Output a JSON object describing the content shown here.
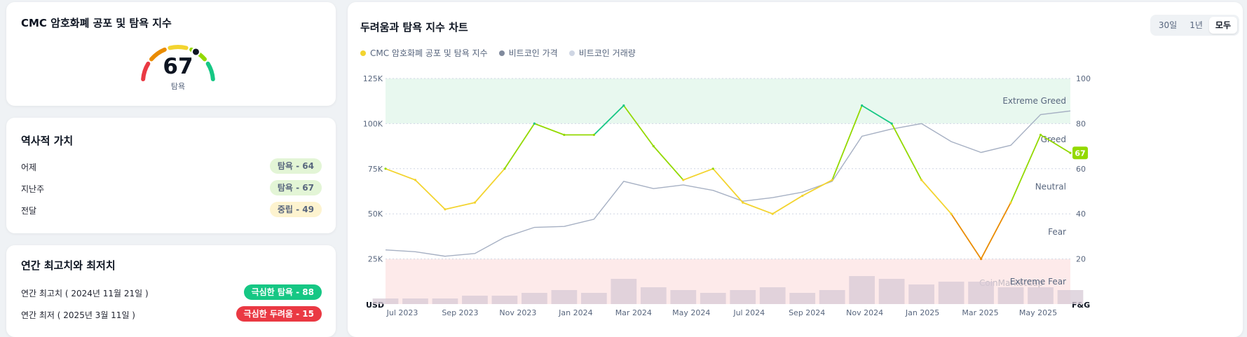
{
  "gauge": {
    "title": "CMC 암호화폐 공포 및 탐욕 지수",
    "value": "67",
    "label": "탐욕",
    "level": 67,
    "colors": [
      "#ea3943",
      "#ea8c00",
      "#f3d42f",
      "#93d900",
      "#16c784"
    ]
  },
  "historical": {
    "title": "역사적 가치",
    "rows": [
      {
        "label": "어제",
        "badge": "탐욕 - 64",
        "tone": "greed"
      },
      {
        "label": "지난주",
        "badge": "탐욕 - 67",
        "tone": "greed"
      },
      {
        "label": "전달",
        "badge": "중립 - 49",
        "tone": "neutral"
      }
    ]
  },
  "yearly": {
    "title": "연간 최고치와 최저치",
    "rows": [
      {
        "label": "연간 최고치 ( 2024년 11월 21일 )",
        "badge": "극심한 탐욕 - 88",
        "tone": "xgreed"
      },
      {
        "label": "연간 최저 ( 2025년 3월 11일 )",
        "badge": "극심한 두려움 - 15",
        "tone": "xfear"
      }
    ]
  },
  "chart_panel": {
    "title": "두려움과 탐욕 지수 차트",
    "ranges": [
      "30일",
      "1년",
      "모두"
    ],
    "active_range": "모두",
    "legend": [
      {
        "label": "CMC 암호화폐 공포 및 탐욕 지수",
        "color": "#f3d42f"
      },
      {
        "label": "비트코인 가격",
        "color": "#808a9d"
      },
      {
        "label": "비트코인 거래량",
        "color": "#cfd6e4"
      }
    ],
    "watermark": "CoinMarketCap"
  },
  "chart_data": {
    "type": "line",
    "x": [
      "2023-07",
      "2023-08",
      "2023-09",
      "2023-10",
      "2023-11",
      "2023-12",
      "2024-01",
      "2024-02",
      "2024-03",
      "2024-04",
      "2024-05",
      "2024-06",
      "2024-07",
      "2024-08",
      "2024-09",
      "2024-10",
      "2024-11",
      "2024-12",
      "2025-01",
      "2025-02",
      "2025-03",
      "2025-04",
      "2025-05",
      "2025-06"
    ],
    "x_tick_labels": [
      "Jul 2023",
      "Sep 2023",
      "Nov 2023",
      "Jan 2024",
      "Mar 2024",
      "May 2024",
      "Jul 2024",
      "Sep 2024",
      "Nov 2024",
      "Jan 2025",
      "Mar 2025",
      "May 2025"
    ],
    "left_axis": {
      "label": "USD",
      "ticks": [
        "125K",
        "100K",
        "75K",
        "50K",
        "25K"
      ],
      "values": [
        125000,
        100000,
        75000,
        50000,
        25000
      ],
      "range": [
        0,
        125000
      ]
    },
    "right_axis": {
      "label": "F&G",
      "ticks": [
        "100",
        "80",
        "60",
        "40",
        "20"
      ],
      "range": [
        0,
        100
      ]
    },
    "zones": [
      "Extreme Greed",
      "Greed",
      "Neutral",
      "Fear",
      "Extreme Fear"
    ],
    "current_value": "67",
    "series": [
      {
        "name": "CMC 암호화폐 공포 및 탐욕 지수",
        "axis": "right",
        "values": [
          60,
          55,
          42,
          45,
          60,
          80,
          75,
          75,
          88,
          70,
          55,
          60,
          45,
          40,
          48,
          55,
          88,
          80,
          55,
          40,
          20,
          45,
          75,
          67
        ]
      },
      {
        "name": "비트코인 가격",
        "axis": "left",
        "values": [
          30000,
          29000,
          26500,
          28000,
          37000,
          42500,
          43000,
          47000,
          68000,
          64000,
          66000,
          63000,
          57000,
          59000,
          62000,
          68000,
          93000,
          97000,
          100000,
          90000,
          84000,
          88000,
          105000,
          107000
        ]
      },
      {
        "name": "비트코인 거래량",
        "axis": "left",
        "values": [
          2,
          2,
          2,
          3,
          3,
          4,
          5,
          4,
          9,
          6,
          5,
          4,
          5,
          6,
          4,
          5,
          10,
          9,
          7,
          8,
          8,
          6,
          6,
          5
        ]
      }
    ]
  }
}
